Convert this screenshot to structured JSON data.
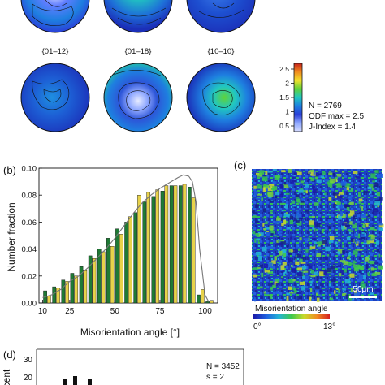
{
  "pole_figures": {
    "labels": [
      "{01–12}",
      "{01–18}",
      "{10–10}"
    ],
    "colorbar": {
      "ticks": [
        "2.5",
        "2",
        "1.5",
        "1",
        "0.5"
      ],
      "tick_values": [
        2.5,
        2.0,
        1.5,
        1.0,
        0.5
      ],
      "range": [
        0.3,
        2.7
      ],
      "colors": [
        "#d6dcff",
        "#8fa8ff",
        "#2a3fd8",
        "#1e7fe0",
        "#21c7c0",
        "#5fd23a",
        "#f2e12c",
        "#f08a1f",
        "#c8231c"
      ],
      "stats": [
        "N = 2769",
        "ODF max = 2.5",
        "J-Index = 1.4"
      ]
    }
  },
  "panel_b": {
    "letter": "(b)"
  },
  "panel_c": {
    "letter": "(c)",
    "scale_bar": "50μm",
    "legend_title": "Misorientation angle",
    "legend_min": "0°",
    "legend_max": "13°",
    "legend_colors": [
      "#1a1aa8",
      "#1f5fe0",
      "#22b4d6",
      "#3ec94a",
      "#c9d92a",
      "#f08a1f",
      "#d42020"
    ]
  },
  "panel_d": {
    "letter": "(d)",
    "ylabel": "cent",
    "yticks": [
      "30",
      "20"
    ],
    "stats": [
      "N = 3452",
      "s = 2"
    ]
  },
  "chart_data": {
    "type": "bar",
    "xlabel": "Misorientation angle [°]",
    "ylabel": "Number fraction",
    "xlim": [
      8,
      107
    ],
    "ylim": [
      0,
      0.1
    ],
    "xticks": [
      10,
      25,
      50,
      75,
      100
    ],
    "xtick_labels": [
      "10",
      "25",
      "50",
      "75",
      "100"
    ],
    "yticks": [
      0,
      0.02,
      0.04,
      0.06,
      0.08,
      0.1
    ],
    "ytick_labels": [
      "0.00",
      "0.02",
      "0.04",
      "0.06",
      "0.08",
      "0.10"
    ],
    "grid": false,
    "colors": {
      "series_1": "#1f7a35",
      "series_2": "#e8d24a",
      "curve": "#777777"
    },
    "x": [
      12.5,
      17.5,
      22.5,
      27.5,
      32.5,
      37.5,
      42.5,
      47.5,
      52.5,
      57.5,
      62.5,
      67.5,
      72.5,
      77.5,
      82.5,
      87.5,
      92.5,
      97.5,
      102.5
    ],
    "series": [
      {
        "values": [
          0.009,
          0.012,
          0.017,
          0.022,
          0.027,
          0.035,
          0.04,
          0.048,
          0.055,
          0.06,
          0.067,
          0.075,
          0.079,
          0.083,
          0.087,
          0.087,
          0.086,
          0.006,
          0.001
        ]
      },
      {
        "values": [
          0.005,
          0.011,
          0.016,
          0.02,
          0.024,
          0.033,
          0.038,
          0.042,
          0.051,
          0.064,
          0.08,
          0.082,
          0.084,
          0.087,
          0.087,
          0.088,
          0.078,
          0.01,
          0.002
        ]
      }
    ],
    "curve": {
      "x": [
        10,
        15,
        20,
        25,
        30,
        35,
        40,
        45,
        50,
        55,
        60,
        65,
        70,
        75,
        80,
        85,
        88,
        91,
        93,
        95,
        97,
        100,
        102
      ],
      "y": [
        0.004,
        0.006,
        0.01,
        0.016,
        0.02,
        0.026,
        0.033,
        0.04,
        0.048,
        0.057,
        0.066,
        0.074,
        0.08,
        0.085,
        0.089,
        0.093,
        0.095,
        0.094,
        0.09,
        0.075,
        0.04,
        0.006,
        0.001
      ]
    }
  }
}
